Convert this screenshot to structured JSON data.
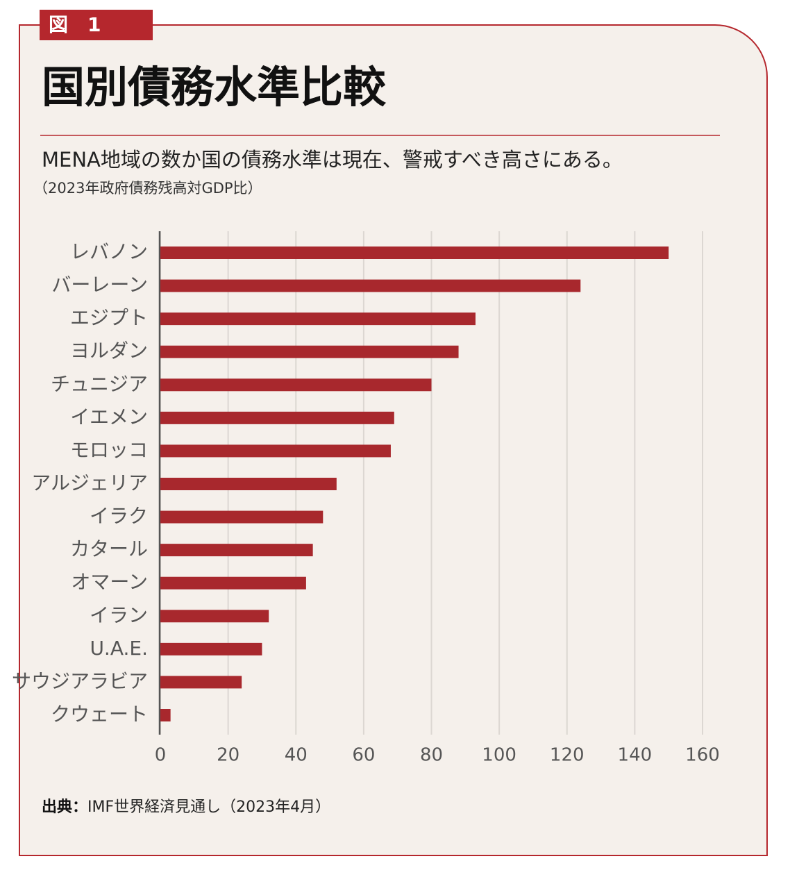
{
  "badge": "図　1",
  "chart_data": {
    "type": "bar",
    "orientation": "horizontal",
    "title": "国別債務水準比較",
    "subtitle": "MENA地域の数か国の債務水準は現在、警戒すべき高さにある。",
    "note": "（2023年政府債務残高対GDP比）",
    "categories": [
      "レバノン",
      "バーレーン",
      "エジプト",
      "ヨルダン",
      "チュニジア",
      "イエメン",
      "モロッコ",
      "アルジェリア",
      "イラク",
      "カタール",
      "オマーン",
      "イラン",
      "U.A.E.",
      "サウジアラビア",
      "クウェート"
    ],
    "values": [
      150,
      124,
      93,
      88,
      80,
      69,
      68,
      52,
      48,
      45,
      43,
      32,
      30,
      24,
      3
    ],
    "color": "#a8282d",
    "xlim": [
      0,
      160
    ],
    "xticks": [
      0,
      20,
      40,
      60,
      80,
      100,
      120,
      140,
      160
    ],
    "grid": true,
    "source_label": "出典：",
    "source": "IMF世界経済見通し（2023年4月）"
  }
}
